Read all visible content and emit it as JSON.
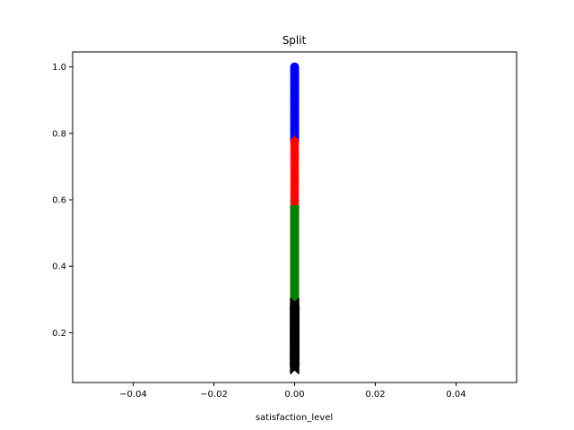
{
  "chart_data": {
    "type": "scatter",
    "title": "Split",
    "xlabel": "satisfaction_level",
    "ylabel": "",
    "xlim": [
      -0.055,
      0.055
    ],
    "ylim": [
      0.05,
      1.045
    ],
    "xticks": [
      -0.04,
      -0.02,
      0.0,
      0.02,
      0.04
    ],
    "xtick_labels": [
      "−0.04",
      "−0.02",
      "0.00",
      "0.02",
      "0.04"
    ],
    "yticks": [
      0.2,
      0.4,
      0.6,
      0.8,
      1.0
    ],
    "ytick_labels": [
      "0.2",
      "0.4",
      "0.6",
      "0.8",
      "1.0"
    ],
    "grid": false,
    "legend": "none",
    "series": [
      {
        "color": "#0000ff",
        "marker": "circle",
        "x": 0.0,
        "y_range": [
          0.78,
          1.0
        ]
      },
      {
        "color": "#ff0000",
        "marker": "star",
        "x": 0.0,
        "y_range": [
          0.57,
          0.78
        ]
      },
      {
        "color": "#008000",
        "marker": "square",
        "x": 0.0,
        "y_range": [
          0.29,
          0.57
        ]
      },
      {
        "color": "#000000",
        "marker": "cross",
        "x": 0.0,
        "y_range": [
          0.09,
          0.29
        ]
      }
    ]
  }
}
